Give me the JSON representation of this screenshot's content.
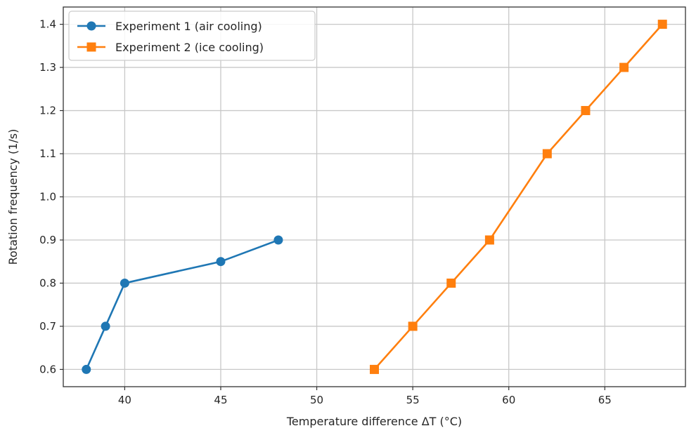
{
  "chart_data": {
    "type": "line",
    "xlabel": "Temperature difference ΔT (°C)",
    "ylabel": "Rotation frequency (1/s)",
    "xlim": [
      36.8,
      69.2
    ],
    "ylim": [
      0.56,
      1.44
    ],
    "xticks": [
      40,
      45,
      50,
      55,
      60,
      65
    ],
    "yticks": [
      0.6,
      0.7,
      0.8,
      0.9,
      1.0,
      1.1,
      1.2,
      1.3,
      1.4
    ],
    "xtick_labels": [
      "40",
      "45",
      "50",
      "55",
      "60",
      "65"
    ],
    "ytick_labels": [
      "0.6",
      "0.7",
      "0.8",
      "0.9",
      "1.0",
      "1.1",
      "1.2",
      "1.3",
      "1.4"
    ],
    "grid": true,
    "legend_position": "top-left",
    "series": [
      {
        "name": "Experiment 1 (air cooling)",
        "color": "#1f77b4",
        "marker": "circle",
        "x": [
          38,
          39,
          40,
          45,
          48
        ],
        "y": [
          0.6,
          0.7,
          0.8,
          0.85,
          0.9
        ]
      },
      {
        "name": "Experiment 2 (ice cooling)",
        "color": "#ff7f0e",
        "marker": "square",
        "x": [
          53,
          55,
          57,
          59,
          62,
          64,
          66,
          68
        ],
        "y": [
          0.6,
          0.7,
          0.8,
          0.9,
          1.1,
          1.2,
          1.3,
          1.4
        ]
      }
    ]
  }
}
